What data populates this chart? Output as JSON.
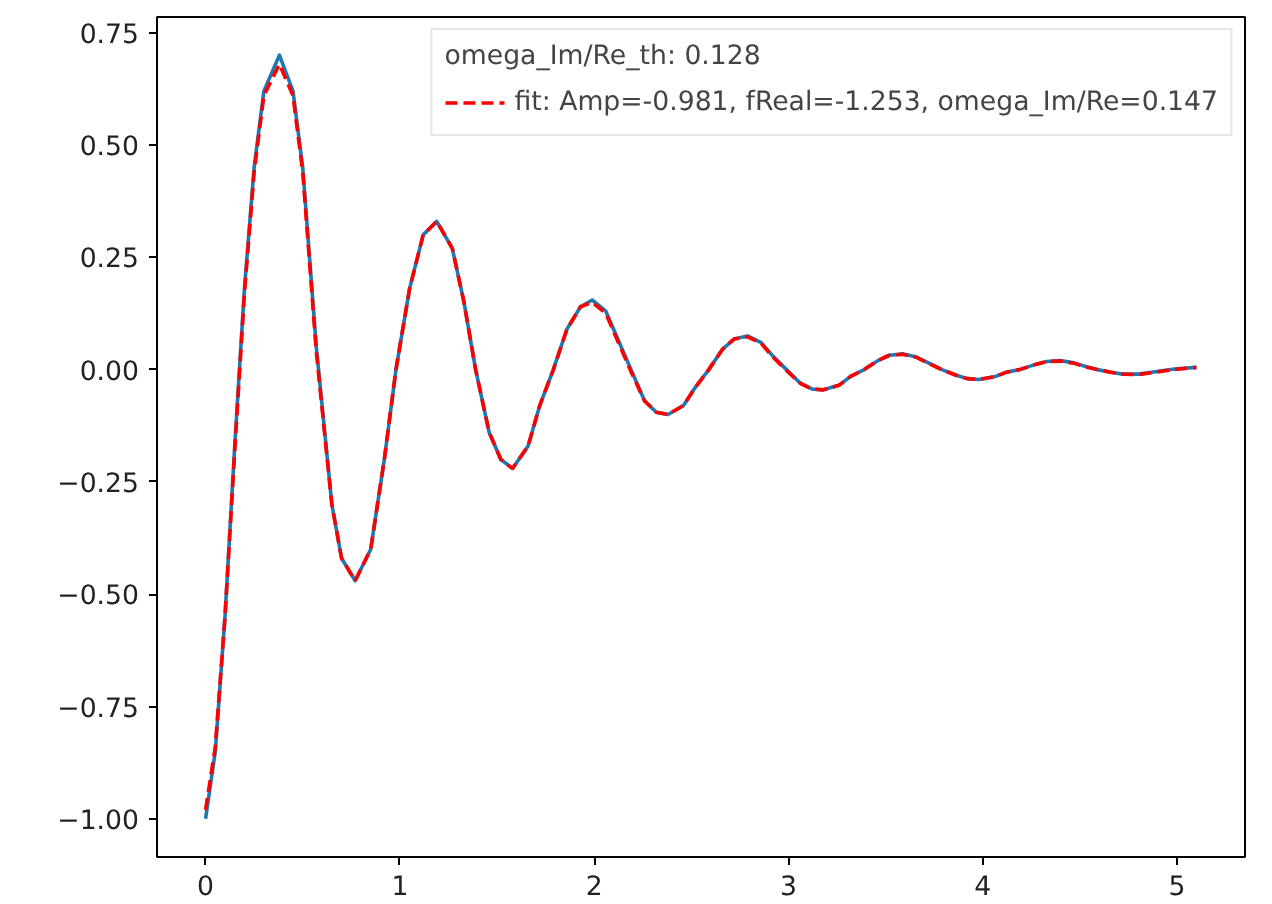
{
  "chart_data": {
    "type": "line",
    "x": [
      0,
      0.05,
      0.1,
      0.15,
      0.2,
      0.25,
      0.3,
      0.38,
      0.45,
      0.5,
      0.57,
      0.65,
      0.7,
      0.77,
      0.85,
      0.92,
      0.98,
      1.05,
      1.12,
      1.19,
      1.27,
      1.33,
      1.39,
      1.46,
      1.52,
      1.58,
      1.66,
      1.72,
      1.79,
      1.86,
      1.93,
      1.99,
      2.06,
      2.12,
      2.19,
      2.26,
      2.32,
      2.38,
      2.46,
      2.52,
      2.59,
      2.66,
      2.72,
      2.79,
      2.86,
      2.92,
      2.99,
      3.06,
      3.12,
      3.18,
      3.26,
      3.32,
      3.39,
      3.46,
      3.52,
      3.59,
      3.66,
      3.72,
      3.79,
      3.86,
      3.92,
      3.98,
      4.06,
      4.12,
      4.19,
      4.26,
      4.33,
      4.4,
      4.47,
      4.53,
      4.59,
      4.66,
      4.72,
      4.8,
      4.87,
      4.93,
      5.0,
      5.1
    ],
    "series": [
      {
        "color": "#1f77b4",
        "line_style": "solid",
        "values": [
          -1.0,
          -0.85,
          -0.55,
          -0.17,
          0.18,
          0.45,
          0.62,
          0.7,
          0.62,
          0.45,
          0.05,
          -0.3,
          -0.42,
          -0.47,
          -0.4,
          -0.2,
          0.0,
          0.18,
          0.3,
          0.33,
          0.27,
          0.15,
          0.0,
          -0.14,
          -0.2,
          -0.22,
          -0.17,
          -0.08,
          0.0,
          0.09,
          0.14,
          0.155,
          0.13,
          0.07,
          0.0,
          -0.07,
          -0.095,
          -0.1,
          -0.08,
          -0.04,
          0.0,
          0.045,
          0.068,
          0.075,
          0.06,
          0.03,
          0.0,
          -0.03,
          -0.043,
          -0.045,
          -0.035,
          -0.015,
          0.0,
          0.02,
          0.032,
          0.035,
          0.028,
          0.015,
          0.0,
          -0.012,
          -0.02,
          -0.022,
          -0.016,
          -0.006,
          0.0,
          0.01,
          0.018,
          0.02,
          0.015,
          0.007,
          0.0,
          -0.006,
          -0.01,
          -0.01,
          -0.006,
          -0.002,
          0.002,
          0.005
        ]
      },
      {
        "name": "fit: Amp=-0.981, fReal=-1.253, omega_Im/Re=0.147",
        "color": "#ff0000",
        "line_style": "dashed",
        "values": [
          -0.98,
          -0.84,
          -0.55,
          -0.18,
          0.17,
          0.44,
          0.61,
          0.68,
          0.61,
          0.44,
          0.04,
          -0.3,
          -0.42,
          -0.47,
          -0.4,
          -0.2,
          0.0,
          0.18,
          0.3,
          0.33,
          0.27,
          0.15,
          0.0,
          -0.14,
          -0.2,
          -0.22,
          -0.17,
          -0.08,
          0.0,
          0.09,
          0.14,
          0.15,
          0.125,
          0.065,
          -0.005,
          -0.07,
          -0.095,
          -0.1,
          -0.08,
          -0.04,
          0.0,
          0.045,
          0.068,
          0.073,
          0.058,
          0.028,
          -0.002,
          -0.03,
          -0.043,
          -0.045,
          -0.035,
          -0.015,
          0.0,
          0.02,
          0.032,
          0.034,
          0.027,
          0.014,
          0.0,
          -0.012,
          -0.02,
          -0.022,
          -0.016,
          -0.006,
          0.0,
          0.01,
          0.018,
          0.019,
          0.014,
          0.006,
          0.0,
          -0.006,
          -0.01,
          -0.011,
          -0.007,
          -0.003,
          0.001,
          0.005
        ]
      }
    ],
    "legend_title": "omega_Im/Re_th: 0.128",
    "legend": "top right",
    "grid": false,
    "xlim": [
      -0.25,
      5.35
    ],
    "ylim": [
      -1.085,
      0.785
    ],
    "xticks": [
      0,
      1,
      2,
      3,
      4,
      5
    ],
    "yticks": [
      {
        "value": -1.0,
        "label": "−1.00"
      },
      {
        "value": -0.75,
        "label": "−0.75"
      },
      {
        "value": -0.5,
        "label": "−0.50"
      },
      {
        "value": -0.25,
        "label": "−0.25"
      },
      {
        "value": 0.0,
        "label": "0.00"
      },
      {
        "value": 0.25,
        "label": "0.25"
      },
      {
        "value": 0.5,
        "label": "0.50"
      },
      {
        "value": 0.75,
        "label": "0.75"
      }
    ]
  }
}
